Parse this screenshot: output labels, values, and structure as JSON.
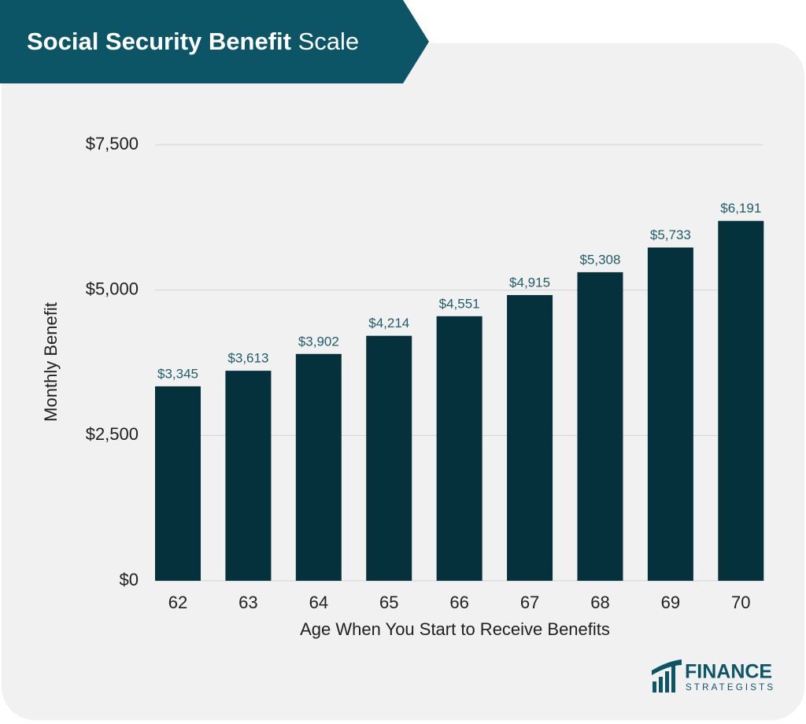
{
  "chart_data": {
    "type": "bar",
    "title": {
      "bold": "Social Security Benefit",
      "regular": "Scale"
    },
    "x_label": "Age When You Start to Receive Benefits",
    "y_label": "Monthly Benefit",
    "categories": [
      "62",
      "63",
      "64",
      "65",
      "66",
      "67",
      "68",
      "69",
      "70"
    ],
    "values": [
      3345,
      3613,
      3902,
      4214,
      4551,
      4915,
      5308,
      5733,
      6191
    ],
    "value_labels": [
      "$3,345",
      "$3,613",
      "$3,902",
      "$4,214",
      "$4,551",
      "$4,915",
      "$5,308",
      "$5,733",
      "$6,191"
    ],
    "color": "#04313b",
    "ylim": [
      0,
      7500
    ],
    "yticks": [
      {
        "value": 0,
        "label": "$0"
      },
      {
        "value": 2500,
        "label": "$2,500"
      },
      {
        "value": 5000,
        "label": "$5,000"
      },
      {
        "value": 7500,
        "label": "$7,500"
      }
    ],
    "grid": true
  },
  "brand": {
    "name": "FINANCE",
    "tagline": "STRATEGISTS"
  }
}
